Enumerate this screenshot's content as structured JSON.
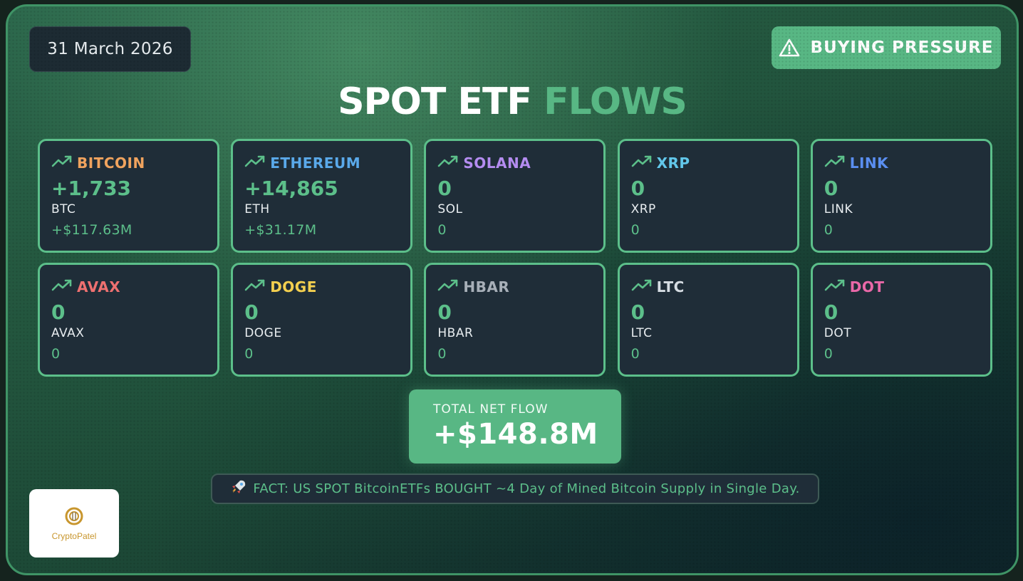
{
  "header": {
    "date": "31 March 2026",
    "status_badge": "BUYING PRESSURE",
    "title_white": "SPOT ETF",
    "title_green": "FLOWS"
  },
  "assets": [
    {
      "name": "BITCOIN",
      "amount": "+1,733",
      "unit": "BTC",
      "usd": "+$117.63M",
      "color": "#f0a35e"
    },
    {
      "name": "ETHEREUM",
      "amount": "+14,865",
      "unit": "ETH",
      "usd": "+$31.17M",
      "color": "#5aa9ea"
    },
    {
      "name": "SOLANA",
      "amount": "0",
      "unit": "SOL",
      "usd": "0",
      "color": "#b48cf0"
    },
    {
      "name": "XRP",
      "amount": "0",
      "unit": "XRP",
      "usd": "0",
      "color": "#62c7ea"
    },
    {
      "name": "LINK",
      "amount": "0",
      "unit": "LINK",
      "usd": "0",
      "color": "#5a8ef0"
    },
    {
      "name": "AVAX",
      "amount": "0",
      "unit": "AVAX",
      "usd": "0",
      "color": "#ee7070"
    },
    {
      "name": "DOGE",
      "amount": "0",
      "unit": "DOGE",
      "usd": "0",
      "color": "#f3cf4f"
    },
    {
      "name": "HBAR",
      "amount": "0",
      "unit": "HBAR",
      "usd": "0",
      "color": "#a7afb8"
    },
    {
      "name": "LTC",
      "amount": "0",
      "unit": "LTC",
      "usd": "0",
      "color": "#d6dde3"
    },
    {
      "name": "DOT",
      "amount": "0",
      "unit": "DOT",
      "usd": "0",
      "color": "#e968a8"
    }
  ],
  "total": {
    "label": "TOTAL NET FLOW",
    "value": "+$148.8M"
  },
  "fact": {
    "icon": "rocket-icon",
    "text": "FACT: US SPOT BitcoinETFs BOUGHT ~4 Day of Mined Bitcoin Supply in Single Day."
  },
  "logo": {
    "text": "CryptoPatel"
  },
  "colors": {
    "accent": "#58b784",
    "card_bg": "#1f2d38",
    "card_border": "#5cbf8a"
  }
}
